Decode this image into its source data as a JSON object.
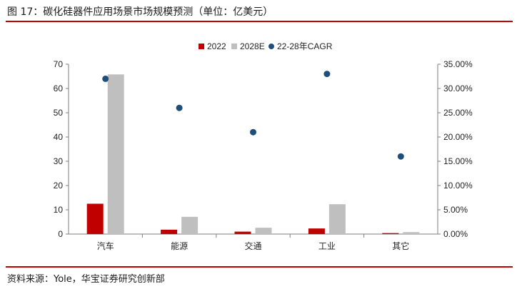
{
  "figure": {
    "title": "图 17：碳化硅器件应用场景市场规模预测（单位：亿美元）",
    "source": "资料来源：Yole，华宝证券研究创新部"
  },
  "colors": {
    "accent_rule": "#c00000",
    "series_2022": "#c00000",
    "series_2028E": "#bfbfbf",
    "series_cagr": "#1f4e79"
  },
  "chart_data": {
    "type": "bar",
    "title": "",
    "xlabel": "",
    "ylabel": "",
    "categories": [
      "汽车",
      "能源",
      "交通",
      "工业",
      "其它"
    ],
    "series": [
      {
        "name": "2022",
        "type": "bar",
        "axis": "left",
        "values": [
          12.5,
          1.8,
          1.0,
          2.3,
          0.4
        ]
      },
      {
        "name": "2028E",
        "type": "bar",
        "axis": "left",
        "values": [
          65.8,
          7.1,
          2.6,
          12.3,
          0.8
        ]
      },
      {
        "name": "22-28年CAGR",
        "type": "scatter",
        "axis": "right",
        "values": [
          32.0,
          26.0,
          21.0,
          33.0,
          16.0
        ]
      }
    ],
    "y_left": {
      "lim": [
        0,
        70
      ],
      "ticks": [
        "0",
        "10",
        "20",
        "30",
        "40",
        "50",
        "60",
        "70"
      ]
    },
    "y_right": {
      "lim": [
        0,
        35
      ],
      "ticks": [
        "0.00%",
        "5.00%",
        "10.00%",
        "15.00%",
        "20.00%",
        "25.00%",
        "30.00%",
        "35.00%"
      ]
    },
    "legend_position": "top-center",
    "grid": false
  }
}
